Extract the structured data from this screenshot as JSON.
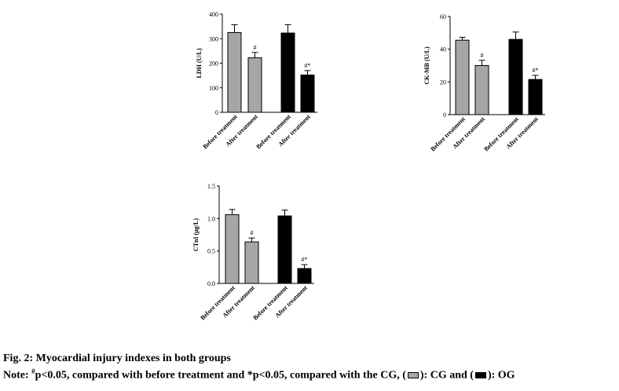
{
  "colors": {
    "cg": "#a6a6a6",
    "og": "#000000"
  },
  "chart_data": [
    {
      "type": "bar",
      "ylabel": "LDH (U/L)",
      "ylim": [
        0,
        400
      ],
      "yticks": [
        0,
        100,
        200,
        300,
        400
      ],
      "categories": [
        "Before treatment",
        "After treatment",
        "Before treatment",
        "After treatment"
      ],
      "groups": [
        "CG",
        "CG",
        "OG",
        "OG"
      ],
      "values": [
        325,
        222,
        323,
        152
      ],
      "errors": [
        32,
        22,
        34,
        18
      ],
      "annotations": [
        "",
        "#",
        "",
        "#*"
      ]
    },
    {
      "type": "bar",
      "ylabel": "CK-MB (U/L)",
      "ylim": [
        0,
        60
      ],
      "yticks": [
        0,
        20,
        40,
        60
      ],
      "categories": [
        "Before treatment",
        "After treatment",
        "Before treatment",
        "After treatment"
      ],
      "groups": [
        "CG",
        "CG",
        "OG",
        "OG"
      ],
      "values": [
        45.5,
        30,
        46,
        21.5
      ],
      "errors": [
        1.8,
        3.2,
        4.5,
        2.5
      ],
      "annotations": [
        "",
        "#",
        "",
        "#*"
      ]
    },
    {
      "type": "bar",
      "ylabel": "CTnI (μg/L)",
      "ylim": [
        0,
        1.5
      ],
      "yticks": [
        "0.0",
        "0.5",
        "1.0",
        "1.5"
      ],
      "categories": [
        "Before treatment",
        "After treatment",
        "Before treatment",
        "After treatment"
      ],
      "groups": [
        "CG",
        "CG",
        "OG",
        "OG"
      ],
      "values": [
        1.06,
        0.64,
        1.04,
        0.23
      ],
      "errors": [
        0.08,
        0.06,
        0.09,
        0.06
      ],
      "annotations": [
        "",
        "#",
        "",
        "#*"
      ]
    }
  ],
  "caption": {
    "title": "Fig. 2: Myocardial injury indexes in both groups",
    "note_prefix": "Note: ",
    "hash": "#",
    "note_p1": "p<0.05, compared with before treatment and *p<0.05, compared with the CG, (",
    "note_mid": "): CG and (",
    "note_end": "): OG"
  }
}
